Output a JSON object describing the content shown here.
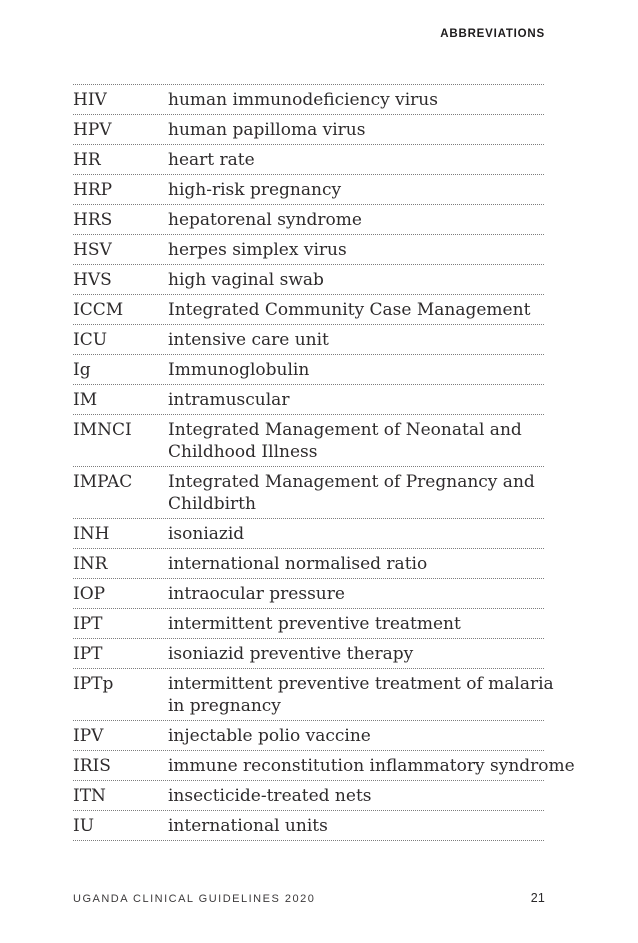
{
  "header": {
    "title": "ABBREVIATIONS"
  },
  "table": {
    "rows": [
      {
        "abbr": "HIV",
        "definition": "human immunodeficiency virus"
      },
      {
        "abbr": "HPV",
        "definition": "human papilloma virus"
      },
      {
        "abbr": "HR",
        "definition": "heart rate"
      },
      {
        "abbr": "HRP",
        "definition": "high-risk pregnancy"
      },
      {
        "abbr": "HRS",
        "definition": "hepatorenal syndrome"
      },
      {
        "abbr": "HSV",
        "definition": "herpes simplex virus"
      },
      {
        "abbr": "HVS",
        "definition": "high vaginal swab"
      },
      {
        "abbr": "ICCM",
        "definition": "Integrated Community Case Management"
      },
      {
        "abbr": "ICU",
        "definition": "intensive care unit"
      },
      {
        "abbr": "Ig",
        "definition": "Immunoglobulin"
      },
      {
        "abbr": "IM",
        "definition": "intramuscular"
      },
      {
        "abbr": "IMNCI",
        "definition": [
          "Integrated Management of Neonatal and",
          "Childhood Illness"
        ]
      },
      {
        "abbr": "IMPAC",
        "definition": [
          "Integrated Management of Pregnancy and",
          "Childbirth"
        ]
      },
      {
        "abbr": "INH",
        "definition": "isoniazid"
      },
      {
        "abbr": "INR",
        "definition": "international normalised ratio"
      },
      {
        "abbr": "IOP",
        "definition": "intraocular pressure"
      },
      {
        "abbr": "IPT",
        "definition": "intermittent preventive treatment"
      },
      {
        "abbr": "IPT",
        "definition": "isoniazid preventive therapy"
      },
      {
        "abbr": "IPTp",
        "definition": [
          "intermittent preventive treatment of malaria",
          "in pregnancy"
        ]
      },
      {
        "abbr": "IPV",
        "definition": "injectable polio vaccine"
      },
      {
        "abbr": "IRIS",
        "definition": "immune reconstitution inflammatory syndrome"
      },
      {
        "abbr": "ITN",
        "definition": "insecticide-treated nets"
      },
      {
        "abbr": "IU",
        "definition": "international units"
      }
    ]
  },
  "footer": {
    "doc_title": "UGANDA CLINICAL GUIDELINES 2020",
    "page_number": "21"
  },
  "colors": {
    "text": "#2e2b2c",
    "divider": "#7d7d7d",
    "background": "#ffffff"
  }
}
